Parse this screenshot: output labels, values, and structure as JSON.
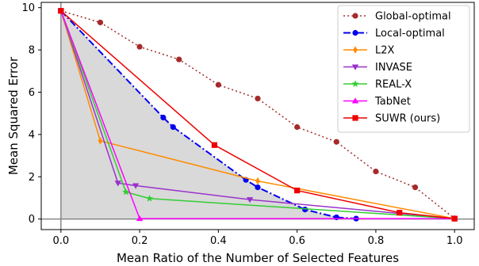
{
  "chart_data": {
    "type": "line",
    "xlabel": "Mean Ratio of the Number of Selected Features",
    "ylabel": "Mean Squared Error",
    "xlim": [
      -0.05,
      1.05
    ],
    "ylim": [
      -0.5,
      10.25
    ],
    "xticks": [
      0.0,
      0.2,
      0.4,
      0.6,
      0.8,
      1.0
    ],
    "xtick_labels": [
      "0.0",
      "0.2",
      "0.4",
      "0.6",
      "0.8",
      "1.0"
    ],
    "yticks": [
      0,
      2,
      4,
      6,
      8,
      10
    ],
    "ytick_labels": [
      "0",
      "2",
      "4",
      "6",
      "8",
      "10"
    ],
    "grid": false,
    "legend_position": "top-right",
    "shaded_region": {
      "color": "#d9d9d9",
      "x": [
        0.0,
        0.26,
        0.285,
        0.47,
        0.5,
        0.62,
        0.7,
        0.75,
        1.0
      ],
      "y": [
        9.85,
        4.8,
        4.35,
        1.85,
        1.5,
        0.45,
        0.08,
        0.02,
        0.0
      ]
    },
    "series": [
      {
        "name": "Global-optimal",
        "color": "#a52a2a",
        "dash": "dot",
        "marker": "circle",
        "x": [
          0.0,
          0.1,
          0.2,
          0.3,
          0.4,
          0.5,
          0.6,
          0.7,
          0.8,
          0.9,
          1.0
        ],
        "y": [
          9.85,
          9.3,
          8.15,
          7.55,
          6.35,
          5.7,
          4.35,
          3.65,
          2.25,
          1.5,
          0.02
        ]
      },
      {
        "name": "Local-optimal",
        "color": "#0000ee",
        "dash": "dashdot",
        "marker": "circle",
        "x": [
          0.0,
          0.26,
          0.285,
          0.47,
          0.5,
          0.62,
          0.7,
          0.75
        ],
        "y": [
          9.85,
          4.8,
          4.35,
          1.85,
          1.5,
          0.45,
          0.08,
          0.02
        ]
      },
      {
        "name": "L2X",
        "color": "#ff8c00",
        "dash": "solid",
        "marker": "diamond",
        "x": [
          0.0,
          0.1,
          0.5,
          1.0
        ],
        "y": [
          9.85,
          3.7,
          1.8,
          0.02
        ]
      },
      {
        "name": "INVASE",
        "color": "#9932cc",
        "dash": "solid",
        "marker": "triangle-down",
        "x": [
          0.0,
          0.145,
          0.19,
          0.48,
          1.0
        ],
        "y": [
          9.85,
          1.7,
          1.58,
          0.92,
          0.02
        ]
      },
      {
        "name": "REAL-X",
        "color": "#32cd32",
        "dash": "solid",
        "marker": "star",
        "x": [
          0.0,
          0.165,
          0.225,
          1.0
        ],
        "y": [
          9.85,
          1.28,
          0.97,
          0.02
        ]
      },
      {
        "name": "TabNet",
        "color": "#ff00ff",
        "dash": "solid",
        "marker": "triangle-up",
        "x": [
          0.0,
          0.2,
          1.0
        ],
        "y": [
          9.85,
          0.02,
          0.02
        ]
      },
      {
        "name": "SUWR (ours)",
        "color": "#ee0000",
        "dash": "solid",
        "marker": "square",
        "x": [
          0.0,
          0.39,
          0.6,
          0.86,
          1.0
        ],
        "y": [
          9.85,
          3.5,
          1.35,
          0.3,
          0.02
        ]
      }
    ]
  }
}
